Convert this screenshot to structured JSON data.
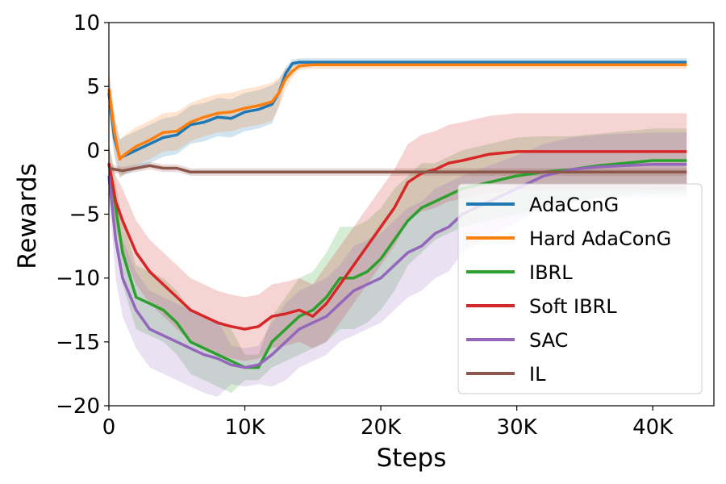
{
  "chart_data": {
    "type": "line",
    "xlabel": "Steps",
    "ylabel": "Rewards",
    "xlim": [
      0,
      44500
    ],
    "ylim": [
      -20,
      10
    ],
    "x_ticks": [
      0,
      10000,
      20000,
      30000,
      40000
    ],
    "x_tick_labels": [
      "0",
      "10K",
      "20K",
      "30K",
      "40K"
    ],
    "y_ticks": [
      10,
      5,
      0,
      -5,
      -10,
      -15,
      -20
    ],
    "y_tick_labels": [
      "10",
      "5",
      "0",
      "−5",
      "−10",
      "−15",
      "−20"
    ],
    "grid": false,
    "legend": "lower-right",
    "series": [
      {
        "name": "AdaConG",
        "color": "#1f77b4",
        "x": [
          0,
          400,
          800,
          1200,
          2000,
          3000,
          4000,
          5000,
          6000,
          7000,
          8000,
          9000,
          10000,
          11000,
          12000,
          12500,
          13000,
          13500,
          14000,
          15000,
          16000,
          20000,
          25000,
          30000,
          35000,
          40000,
          42500
        ],
        "y": [
          4.5,
          1.0,
          -0.6,
          -0.4,
          0.0,
          0.5,
          1.0,
          1.2,
          2.0,
          2.2,
          2.6,
          2.5,
          3.0,
          3.2,
          3.6,
          4.5,
          6.0,
          6.8,
          6.9,
          6.9,
          6.9,
          6.9,
          6.9,
          6.9,
          6.9,
          6.9,
          6.9
        ],
        "band": [
          1.5,
          1.5,
          1.5,
          1.5,
          1.5,
          1.5,
          1.5,
          1.5,
          1.5,
          1.5,
          1.5,
          1.5,
          1.5,
          1.5,
          1.5,
          1.0,
          0.5,
          0.3,
          0.3,
          0.3,
          0.3,
          0.3,
          0.3,
          0.3,
          0.3,
          0.3,
          0.3
        ]
      },
      {
        "name": "Hard AdaConG",
        "color": "#ff7f0e",
        "x": [
          0,
          400,
          800,
          1200,
          2000,
          3000,
          4000,
          5000,
          6000,
          7000,
          8000,
          9000,
          10000,
          11000,
          12000,
          12500,
          13000,
          13500,
          14000,
          15000,
          16000,
          20000,
          25000,
          30000,
          35000,
          40000,
          42500
        ],
        "y": [
          4.8,
          1.5,
          -0.7,
          -0.3,
          0.3,
          0.8,
          1.4,
          1.5,
          2.2,
          2.6,
          2.9,
          3.0,
          3.3,
          3.5,
          3.8,
          4.5,
          5.6,
          6.2,
          6.6,
          6.7,
          6.7,
          6.7,
          6.7,
          6.7,
          6.7,
          6.7,
          6.7
        ],
        "band": [
          1.5,
          1.5,
          1.5,
          1.5,
          1.5,
          1.5,
          1.5,
          1.5,
          1.5,
          1.5,
          1.5,
          1.5,
          1.5,
          1.5,
          1.5,
          1.2,
          0.8,
          0.5,
          0.3,
          0.3,
          0.3,
          0.3,
          0.3,
          0.3,
          0.3,
          0.3,
          0.3
        ]
      },
      {
        "name": "IBRL",
        "color": "#2ca02c",
        "x": [
          0,
          500,
          1000,
          2000,
          3000,
          4000,
          5000,
          6000,
          7000,
          8000,
          9000,
          10000,
          11000,
          12000,
          13000,
          14000,
          15000,
          16000,
          17000,
          18000,
          19000,
          20000,
          21000,
          22000,
          23000,
          24000,
          25000,
          26000,
          28000,
          30000,
          32000,
          34000,
          36000,
          38000,
          40000,
          42500
        ],
        "y": [
          -1.0,
          -4.5,
          -8.0,
          -11.5,
          -12.0,
          -12.5,
          -13.5,
          -15.0,
          -15.5,
          -16.0,
          -16.5,
          -17.0,
          -17.0,
          -15.0,
          -14.0,
          -13.0,
          -12.5,
          -11.5,
          -10.0,
          -10.0,
          -9.5,
          -8.5,
          -7.0,
          -5.5,
          -4.5,
          -4.0,
          -3.5,
          -3.0,
          -2.5,
          -2.0,
          -1.7,
          -1.5,
          -1.2,
          -1.0,
          -0.8,
          -0.8
        ],
        "band": [
          1.5,
          2.0,
          2.5,
          2.5,
          2.5,
          2.5,
          2.5,
          2.5,
          2.5,
          2.5,
          2.5,
          1.0,
          1.0,
          2.0,
          2.5,
          3.0,
          3.0,
          3.5,
          4.0,
          4.0,
          4.0,
          4.0,
          4.0,
          3.5,
          3.5,
          3.0,
          3.0,
          3.0,
          3.0,
          3.0,
          2.8,
          2.6,
          2.5,
          2.5,
          2.5,
          2.5
        ]
      },
      {
        "name": "Soft IBRL",
        "color": "#d62728",
        "x": [
          0,
          500,
          1000,
          2000,
          3000,
          4000,
          5000,
          6000,
          7000,
          8000,
          9000,
          10000,
          11000,
          12000,
          13000,
          14000,
          15000,
          16000,
          17000,
          18000,
          19000,
          20000,
          21000,
          22000,
          23000,
          24000,
          25000,
          26000,
          28000,
          30000,
          32000,
          34000,
          36000,
          38000,
          40000,
          42500
        ],
        "y": [
          -1.0,
          -4.0,
          -5.5,
          -8.0,
          -9.5,
          -10.5,
          -11.5,
          -12.5,
          -13.0,
          -13.5,
          -13.8,
          -14.0,
          -13.8,
          -13.0,
          -12.8,
          -12.5,
          -13.0,
          -12.0,
          -10.5,
          -9.0,
          -7.5,
          -6.0,
          -4.5,
          -2.5,
          -1.8,
          -1.5,
          -1.0,
          -0.8,
          -0.3,
          -0.1,
          -0.1,
          -0.1,
          -0.1,
          -0.1,
          -0.1,
          -0.1
        ],
        "band": [
          1.5,
          2.0,
          2.5,
          2.5,
          2.5,
          2.5,
          2.5,
          2.5,
          2.5,
          2.5,
          2.5,
          2.5,
          2.5,
          2.5,
          2.5,
          2.5,
          2.5,
          3.0,
          3.0,
          3.0,
          3.0,
          3.0,
          3.0,
          3.0,
          3.0,
          3.0,
          3.0,
          3.0,
          3.0,
          3.0,
          3.0,
          3.0,
          3.0,
          3.0,
          3.0,
          3.0
        ]
      },
      {
        "name": "SAC",
        "color": "#9467bd",
        "x": [
          0,
          500,
          1000,
          2000,
          3000,
          4000,
          5000,
          6000,
          7000,
          8000,
          9000,
          10000,
          11000,
          12000,
          13000,
          14000,
          15000,
          16000,
          17000,
          18000,
          19000,
          20000,
          21000,
          22000,
          23000,
          24000,
          25000,
          26000,
          28000,
          30000,
          32000,
          34000,
          36000,
          38000,
          40000,
          42500
        ],
        "y": [
          -2.0,
          -7.0,
          -10.0,
          -12.5,
          -14.0,
          -14.5,
          -15.0,
          -15.5,
          -16.0,
          -16.3,
          -16.8,
          -17.0,
          -16.8,
          -16.0,
          -15.0,
          -14.0,
          -13.5,
          -13.0,
          -12.0,
          -11.0,
          -10.5,
          -10.0,
          -9.0,
          -8.0,
          -7.5,
          -6.5,
          -6.0,
          -5.0,
          -4.0,
          -3.0,
          -2.0,
          -1.5,
          -1.3,
          -1.2,
          -1.1,
          -1.1
        ],
        "band": [
          1.5,
          3.0,
          3.0,
          3.0,
          3.0,
          3.0,
          3.0,
          3.0,
          3.0,
          3.0,
          1.5,
          1.5,
          1.5,
          2.5,
          3.0,
          3.0,
          3.0,
          3.0,
          3.0,
          3.5,
          3.5,
          3.5,
          3.5,
          3.5,
          3.5,
          3.5,
          3.5,
          3.0,
          2.8,
          2.6,
          2.5,
          2.5,
          2.5,
          2.5,
          2.5,
          2.5
        ]
      },
      {
        "name": "IL",
        "color": "#8c564b",
        "x": [
          0,
          500,
          1000,
          2000,
          3000,
          4000,
          5000,
          6000,
          7000,
          8000,
          10000,
          15000,
          20000,
          25000,
          30000,
          35000,
          40000,
          42500
        ],
        "y": [
          -1.4,
          -1.5,
          -1.6,
          -1.4,
          -1.2,
          -1.4,
          -1.4,
          -1.7,
          -1.7,
          -1.7,
          -1.7,
          -1.7,
          -1.7,
          -1.7,
          -1.7,
          -1.7,
          -1.7,
          -1.7
        ],
        "band": [
          0.3,
          0.3,
          0.3,
          0.3,
          0.3,
          0.3,
          0.3,
          0.3,
          0.3,
          0.3,
          0.3,
          0.3,
          0.3,
          0.3,
          0.3,
          0.3,
          0.3,
          0.3
        ]
      }
    ]
  }
}
